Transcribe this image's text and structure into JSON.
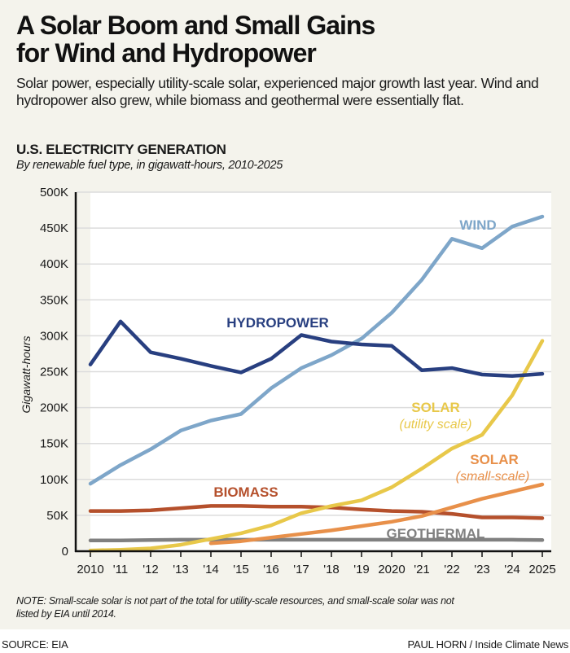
{
  "header": {
    "title_line1": "A Solar Boom and Small Gains",
    "title_line2": "for Wind and Hydropower",
    "subtitle": "Solar power, especially utility-scale solar, experienced major growth last year. Wind and hydropower also grew, while biomass and geothermal were essentially flat."
  },
  "footer": {
    "note": "NOTE: Small-scale solar is not part of the total for utility-scale resources, and small-scale solar was not listed by EIA until 2014.",
    "source": "SOURCE: EIA",
    "credit": "PAUL HORN / Inside Climate News"
  },
  "chart_data": {
    "type": "line",
    "title": "U.S. ELECTRICITY GENERATION",
    "subtitle": "By renewable fuel type, in gigawatt-hours, 2010-2025",
    "xlabel": "",
    "ylabel": "Gigawatt-hours",
    "ylim": [
      0,
      500000
    ],
    "yticks": [
      0,
      50000,
      100000,
      150000,
      200000,
      250000,
      300000,
      350000,
      400000,
      450000,
      500000
    ],
    "ytick_labels": [
      "0",
      "50K",
      "100K",
      "150K",
      "200K",
      "250K",
      "300K",
      "350K",
      "400K",
      "450K",
      "500K"
    ],
    "x": [
      2010,
      2011,
      2012,
      2013,
      2014,
      2015,
      2016,
      2017,
      2018,
      2019,
      2020,
      2021,
      2022,
      2023,
      2024,
      2025
    ],
    "xtick_labels": [
      "2010",
      "'11",
      "'12",
      "'13",
      "'14",
      "'15",
      "'16",
      "'17",
      "'18",
      "'19",
      "2020",
      "'21",
      "'22",
      "'23",
      "'24",
      "2025"
    ],
    "grid": "horizontal",
    "legend": "inline labels",
    "series": [
      {
        "name": "Wind",
        "label": "WIND",
        "sublabel": "",
        "color": "#7ea6c9",
        "values": [
          94000,
          120000,
          142000,
          168000,
          182000,
          191000,
          227000,
          255000,
          273000,
          296000,
          332000,
          378000,
          435000,
          422000,
          452000,
          466000
        ]
      },
      {
        "name": "Hydropower",
        "label": "HYDROPOWER",
        "sublabel": "",
        "color": "#283f80",
        "values": [
          260000,
          320000,
          277000,
          268000,
          258000,
          249000,
          268000,
          301000,
          292000,
          288000,
          286000,
          252000,
          255000,
          246000,
          244000,
          247000
        ]
      },
      {
        "name": "Solar (utility scale)",
        "label": "SOLAR",
        "sublabel": "(utility scale)",
        "color": "#e8c84a",
        "values": [
          1000,
          2000,
          4000,
          9000,
          17000,
          25000,
          36000,
          53000,
          63000,
          71000,
          89000,
          115000,
          143000,
          162000,
          217000,
          293000
        ]
      },
      {
        "name": "Solar (small-scale)",
        "label": "SOLAR",
        "sublabel": "(small-scale)",
        "color": "#e8904a",
        "values": [
          null,
          null,
          null,
          null,
          11000,
          14000,
          19000,
          24000,
          29000,
          35000,
          41000,
          49000,
          61000,
          73000,
          83000,
          93000
        ]
      },
      {
        "name": "Biomass",
        "label": "BIOMASS",
        "sublabel": "",
        "color": "#b5502c",
        "values": [
          56000,
          56000,
          57000,
          60000,
          63000,
          63000,
          62000,
          62000,
          61000,
          58000,
          56000,
          55000,
          52000,
          47000,
          47000,
          46000
        ]
      },
      {
        "name": "Geothermal",
        "label": "GEOTHERMAL",
        "sublabel": "",
        "color": "#808080",
        "values": [
          15000,
          15000,
          15500,
          16000,
          16000,
          16000,
          16000,
          16000,
          16000,
          16000,
          16000,
          16000,
          16000,
          16000,
          16000,
          15500
        ]
      }
    ]
  }
}
